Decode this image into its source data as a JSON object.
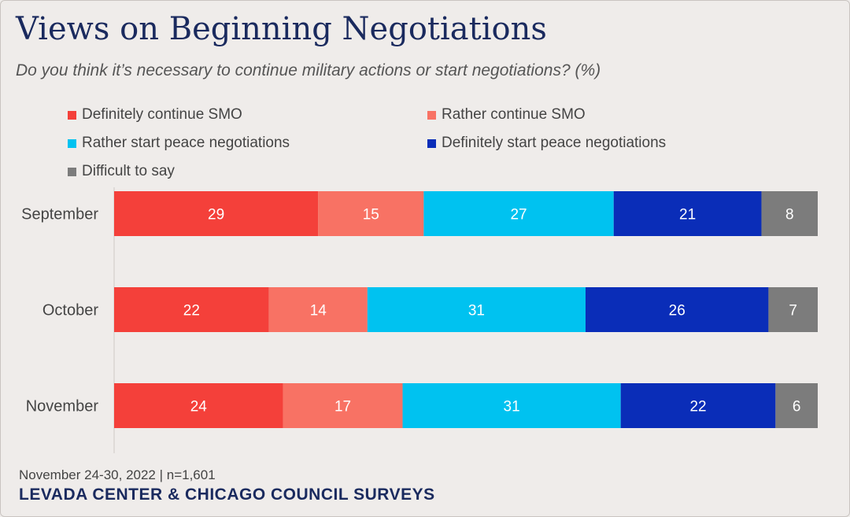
{
  "title": "Views on Beginning Negotiations",
  "subtitle": "Do you think it’s necessary to continue military actions or start negotiations? (%)",
  "footer": {
    "note": "November 24-30, 2022 | n=1,601",
    "source": "LEVADA CENTER & CHICAGO COUNCIL SURVEYS"
  },
  "chart_data": {
    "type": "bar",
    "orientation": "horizontal",
    "stacked": true,
    "categories": [
      "September",
      "October",
      "November"
    ],
    "series": [
      {
        "name": "Definitely continue SMO",
        "color": "#f4403a",
        "values": [
          29,
          22,
          24
        ]
      },
      {
        "name": "Rather continue SMO",
        "color": "#f87264",
        "values": [
          15,
          14,
          17
        ]
      },
      {
        "name": "Rather start peace negotiations",
        "color": "#00c2f0",
        "values": [
          27,
          31,
          31
        ]
      },
      {
        "name": "Definitely start peace negotiations",
        "color": "#0a2db8",
        "values": [
          21,
          26,
          22
        ]
      },
      {
        "name": "Difficult to say",
        "color": "#7c7c7c",
        "values": [
          8,
          7,
          6
        ]
      }
    ],
    "xlim": [
      0,
      100
    ],
    "grid": false,
    "legend": "top"
  }
}
